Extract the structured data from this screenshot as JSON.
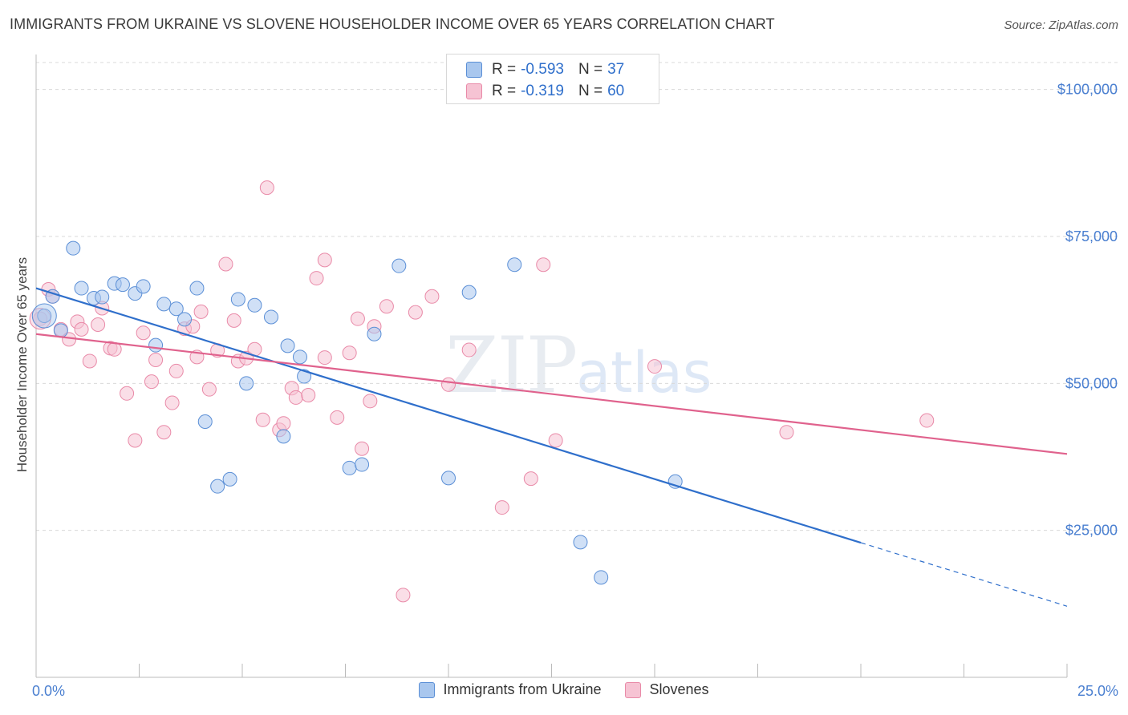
{
  "title": "IMMIGRANTS FROM UKRAINE VS SLOVENE HOUSEHOLDER INCOME OVER 65 YEARS CORRELATION CHART",
  "source": "Source: ZipAtlas.com",
  "watermark": {
    "zip": "ZIP",
    "atlas": "atlas"
  },
  "colors": {
    "ukraine_fill": "#a9c7ee",
    "ukraine_stroke": "#5b8fd6",
    "ukraine_line": "#2f6fcb",
    "slovene_fill": "#f6c3d3",
    "slovene_stroke": "#e98aa8",
    "slovene_line": "#e0628d",
    "axis_text": "#4a7fd0",
    "grid": "#d9d9d9"
  },
  "stats": [
    {
      "r_label": "R =",
      "r_value": "-0.593",
      "n_label": "N =",
      "n_value": "37"
    },
    {
      "r_label": "R =",
      "r_value": "-0.319",
      "n_label": "N =",
      "n_value": "60"
    }
  ],
  "chart_data": {
    "type": "scatter",
    "title": "IMMIGRANTS FROM UKRAINE VS SLOVENE HOUSEHOLDER INCOME OVER 65 YEARS CORRELATION CHART",
    "xlabel": "",
    "ylabel": "Householder Income Over 65 years",
    "xlim": [
      0,
      25
    ],
    "ylim": [
      0,
      105000
    ],
    "x_tick_labels": [
      "0.0%",
      "25.0%"
    ],
    "y_ticks": [
      25000,
      50000,
      75000,
      100000
    ],
    "y_tick_labels": [
      "$25,000",
      "$50,000",
      "$75,000",
      "$100,000"
    ],
    "grid": true,
    "legend_position": "bottom",
    "series": [
      {
        "name": "Immigrants from Ukraine",
        "points": [
          [
            0.2,
            61500
          ],
          [
            0.4,
            64800
          ],
          [
            0.6,
            59000
          ],
          [
            0.9,
            73000
          ],
          [
            1.1,
            66200
          ],
          [
            1.4,
            64500
          ],
          [
            1.6,
            64700
          ],
          [
            1.9,
            67000
          ],
          [
            2.1,
            66800
          ],
          [
            2.4,
            65300
          ],
          [
            2.6,
            66500
          ],
          [
            2.9,
            56500
          ],
          [
            3.1,
            63500
          ],
          [
            3.4,
            62700
          ],
          [
            3.6,
            60900
          ],
          [
            3.9,
            66200
          ],
          [
            4.1,
            43500
          ],
          [
            4.4,
            32500
          ],
          [
            4.7,
            33700
          ],
          [
            4.9,
            64300
          ],
          [
            5.1,
            50000
          ],
          [
            5.3,
            63300
          ],
          [
            5.7,
            61300
          ],
          [
            6.1,
            56400
          ],
          [
            6.0,
            41000
          ],
          [
            6.4,
            54500
          ],
          [
            6.5,
            51200
          ],
          [
            7.6,
            35600
          ],
          [
            7.9,
            36200
          ],
          [
            8.2,
            58400
          ],
          [
            8.8,
            70000
          ],
          [
            10.0,
            33900
          ],
          [
            10.5,
            65500
          ],
          [
            11.6,
            70200
          ],
          [
            13.2,
            23000
          ],
          [
            13.7,
            17000
          ],
          [
            15.5,
            33300
          ]
        ]
      },
      {
        "name": "Slovenes",
        "points": [
          [
            0.1,
            61000
          ],
          [
            0.3,
            66000
          ],
          [
            0.4,
            64800
          ],
          [
            0.6,
            59200
          ],
          [
            0.8,
            57500
          ],
          [
            1.0,
            60500
          ],
          [
            1.1,
            59200
          ],
          [
            1.3,
            53800
          ],
          [
            1.5,
            60000
          ],
          [
            1.6,
            62800
          ],
          [
            1.8,
            56000
          ],
          [
            1.9,
            55800
          ],
          [
            2.2,
            48300
          ],
          [
            2.4,
            40300
          ],
          [
            2.6,
            58600
          ],
          [
            2.8,
            50300
          ],
          [
            2.9,
            54000
          ],
          [
            3.1,
            41700
          ],
          [
            3.3,
            46700
          ],
          [
            3.4,
            52100
          ],
          [
            3.6,
            59300
          ],
          [
            3.8,
            59700
          ],
          [
            3.9,
            54500
          ],
          [
            4.0,
            62200
          ],
          [
            4.2,
            49000
          ],
          [
            4.4,
            55600
          ],
          [
            4.6,
            70300
          ],
          [
            4.8,
            60700
          ],
          [
            4.9,
            53800
          ],
          [
            5.1,
            54300
          ],
          [
            5.3,
            55800
          ],
          [
            5.5,
            43800
          ],
          [
            5.6,
            83300
          ],
          [
            5.9,
            42100
          ],
          [
            6.0,
            43200
          ],
          [
            6.2,
            49200
          ],
          [
            6.3,
            47600
          ],
          [
            6.6,
            48000
          ],
          [
            6.8,
            67900
          ],
          [
            7.0,
            71000
          ],
          [
            7.0,
            54400
          ],
          [
            7.3,
            44200
          ],
          [
            7.6,
            55200
          ],
          [
            7.8,
            61000
          ],
          [
            7.9,
            38900
          ],
          [
            8.1,
            47000
          ],
          [
            8.2,
            59700
          ],
          [
            8.5,
            63100
          ],
          [
            8.9,
            14000
          ],
          [
            9.2,
            62100
          ],
          [
            9.6,
            64800
          ],
          [
            10.0,
            49800
          ],
          [
            10.5,
            55700
          ],
          [
            11.3,
            28900
          ],
          [
            12.0,
            33800
          ],
          [
            12.3,
            70200
          ],
          [
            12.6,
            40300
          ],
          [
            15.0,
            52900
          ],
          [
            18.2,
            41700
          ],
          [
            21.6,
            43700
          ]
        ]
      }
    ],
    "trend_lines": [
      {
        "series": "Immigrants from Ukraine",
        "x": [
          0,
          20,
          25
        ],
        "y": [
          66200,
          22900,
          12100
        ],
        "dashed_from_x": 20
      },
      {
        "series": "Slovenes",
        "x": [
          0,
          25
        ],
        "y": [
          58400,
          38000
        ]
      }
    ]
  }
}
